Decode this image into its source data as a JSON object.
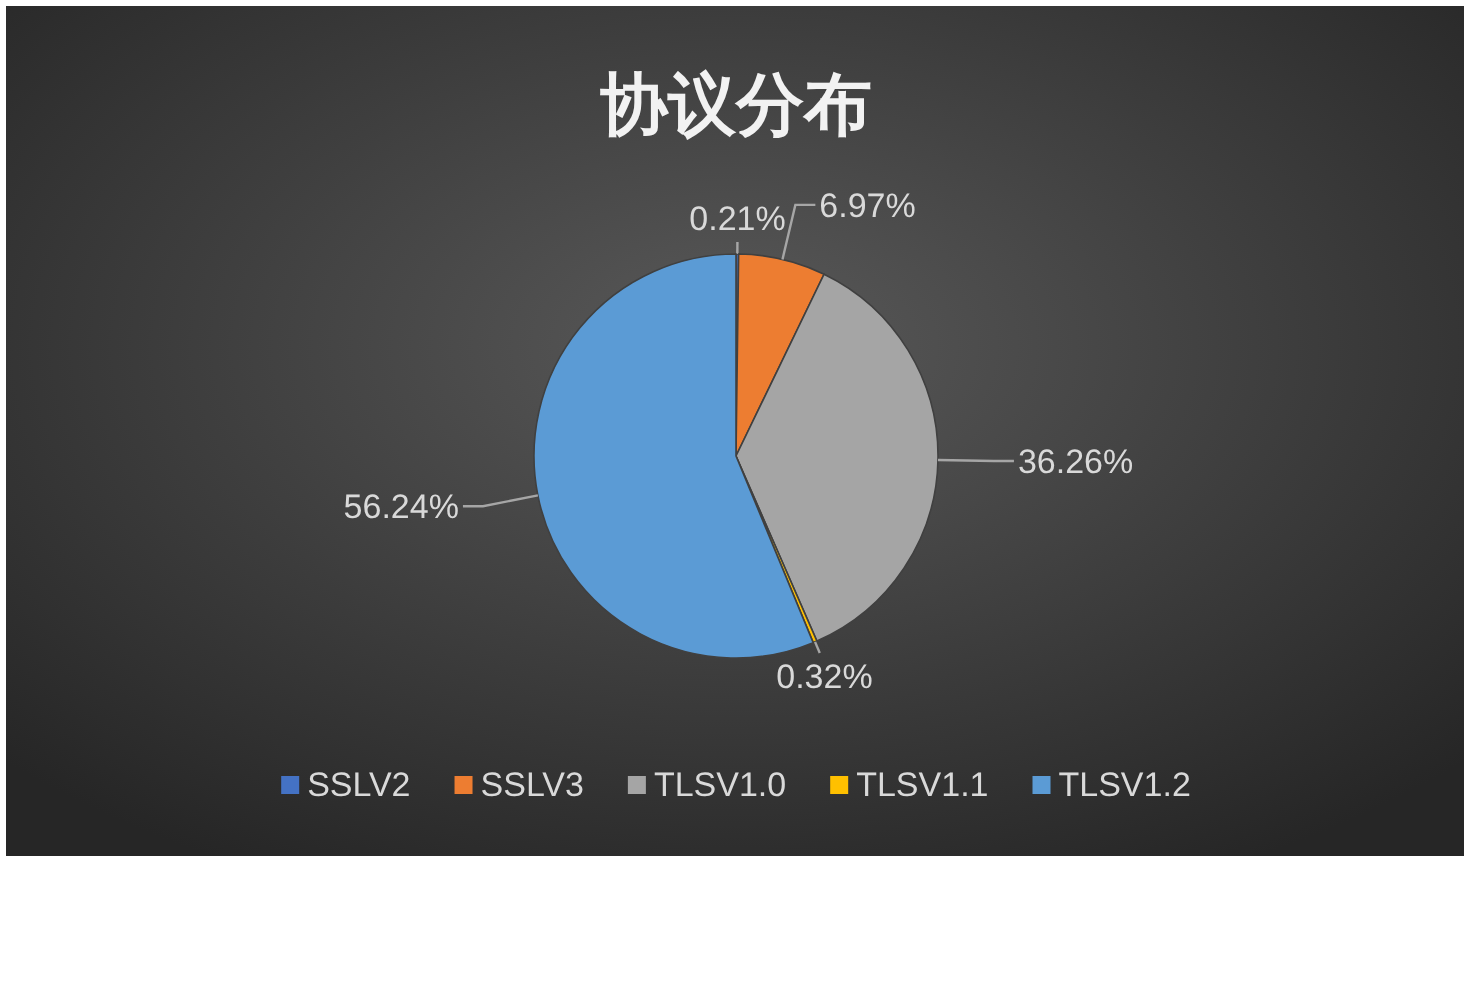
{
  "chart_data": {
    "type": "pie",
    "title": "协议分布",
    "categories": [
      "SSLV2",
      "SSLV3",
      "TLSV1.0",
      "TLSV1.1",
      "TLSV1.2"
    ],
    "values": [
      0.21,
      6.97,
      36.26,
      0.32,
      56.24
    ],
    "colors": [
      "#4472c4",
      "#ed7d31",
      "#a5a5a5",
      "#ffc000",
      "#5b9bd5"
    ],
    "value_labels": [
      "0.21%",
      "6.97%",
      "36.26%",
      "0.32%",
      "56.24%"
    ],
    "legend": "bottom"
  }
}
